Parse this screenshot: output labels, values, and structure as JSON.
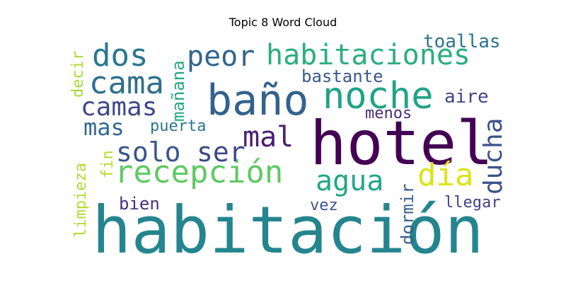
{
  "title": "Topic 8 Word Cloud",
  "chart_data": {
    "type": "wordcloud",
    "title": "Topic 8 Word Cloud",
    "words": [
      {
        "text": "habitación",
        "color": "#25858e",
        "orientation": "horizontal"
      },
      {
        "text": "hotel",
        "color": "#440154",
        "orientation": "horizontal"
      },
      {
        "text": "baño",
        "color": "#33638d",
        "orientation": "horizontal"
      },
      {
        "text": "noche",
        "color": "#20a386",
        "orientation": "horizontal"
      },
      {
        "text": "recepción",
        "color": "#5ec962",
        "orientation": "horizontal"
      },
      {
        "text": "habitaciones",
        "color": "#29af7f",
        "orientation": "horizontal"
      },
      {
        "text": "dos",
        "color": "#2a788e",
        "orientation": "horizontal"
      },
      {
        "text": "cama",
        "color": "#2d708e",
        "orientation": "horizontal"
      },
      {
        "text": "peor",
        "color": "#32658e",
        "orientation": "horizontal"
      },
      {
        "text": "mal",
        "color": "#481f70",
        "orientation": "horizontal"
      },
      {
        "text": "solo",
        "color": "#39568c",
        "orientation": "horizontal"
      },
      {
        "text": "ser",
        "color": "#3f4788",
        "orientation": "horizontal"
      },
      {
        "text": "día",
        "color": "#dde318",
        "orientation": "horizontal"
      },
      {
        "text": "agua",
        "color": "#22a785",
        "orientation": "horizontal"
      },
      {
        "text": "ducha",
        "color": "#3b528b",
        "orientation": "vertical"
      },
      {
        "text": "camas",
        "color": "#3e4989",
        "orientation": "horizontal"
      },
      {
        "text": "mas",
        "color": "#31688e",
        "orientation": "horizontal"
      },
      {
        "text": "toallas",
        "color": "#2c728e",
        "orientation": "horizontal"
      },
      {
        "text": "bastante",
        "color": "#38598c",
        "orientation": "horizontal"
      },
      {
        "text": "aire",
        "color": "#414487",
        "orientation": "horizontal"
      },
      {
        "text": "menos",
        "color": "#472d7b",
        "orientation": "horizontal"
      },
      {
        "text": "puerta",
        "color": "#2a768e",
        "orientation": "horizontal"
      },
      {
        "text": "bien",
        "color": "#46327e",
        "orientation": "horizontal"
      },
      {
        "text": "vez",
        "color": "#3a548c",
        "orientation": "horizontal"
      },
      {
        "text": "llegar",
        "color": "#424086",
        "orientation": "horizontal"
      },
      {
        "text": "mañana",
        "color": "#22a884",
        "orientation": "vertical"
      },
      {
        "text": "decir",
        "color": "#a8db34",
        "orientation": "vertical"
      },
      {
        "text": "fin",
        "color": "#b5de2b",
        "orientation": "vertical"
      },
      {
        "text": "limpieza",
        "color": "#addc30",
        "orientation": "vertical"
      },
      {
        "text": "dormir",
        "color": "#355f8d",
        "orientation": "vertical"
      }
    ]
  }
}
